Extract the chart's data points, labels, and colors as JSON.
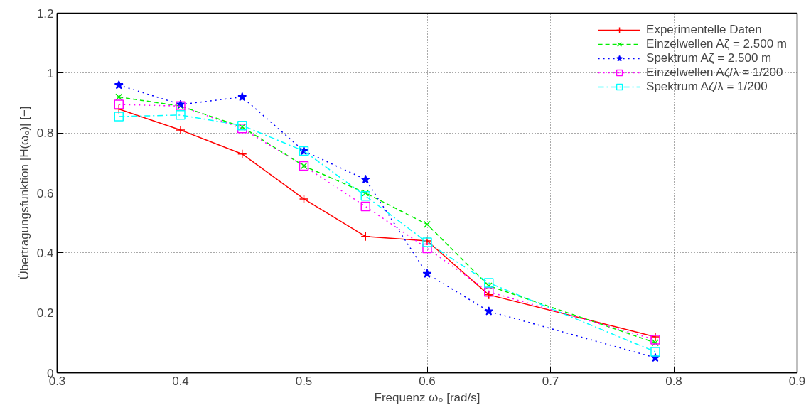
{
  "chart_data": {
    "type": "line",
    "xlabel": "Frequenz ω₀ [rad/s]",
    "ylabel": "Übertragungsfunktion |H(ω₀)| [−]",
    "x": [
      0.35,
      0.4,
      0.45,
      0.5,
      0.55,
      0.6,
      0.65,
      0.785
    ],
    "xlim": [
      0.3,
      0.9
    ],
    "xticks": [
      0.3,
      0.4,
      0.5,
      0.6,
      0.7,
      0.8,
      0.9
    ],
    "ylim": [
      0,
      1.2
    ],
    "yticks": [
      0,
      0.2,
      0.4,
      0.6,
      0.8,
      1,
      1.2
    ],
    "grid": true,
    "legend": "top right",
    "series": [
      {
        "name": "Experimentelle Daten",
        "color": "#ff0000",
        "marker": "cross",
        "line_style": "solid",
        "values": [
          0.88,
          0.81,
          0.73,
          0.58,
          0.455,
          0.44,
          0.26,
          0.12
        ]
      },
      {
        "name": "Einzelwellen Aζ = 2.500 m",
        "color": "#00ee00",
        "marker": "x",
        "line_style": "dashed",
        "values": [
          0.92,
          0.89,
          0.82,
          0.69,
          0.6,
          0.495,
          0.29,
          0.1
        ]
      },
      {
        "name": "Spektrum Aζ = 2.500 m",
        "color": "#0000ff",
        "marker": "star",
        "line_style": "dotted",
        "values": [
          0.96,
          0.895,
          0.92,
          0.74,
          0.645,
          0.33,
          0.205,
          0.05
        ]
      },
      {
        "name": "Einzelwellen Aζ/λ = 1/200",
        "color": "#ff00ff",
        "marker": "square",
        "line_style": "dotted",
        "values": [
          0.895,
          0.89,
          0.815,
          0.69,
          0.555,
          0.415,
          0.27,
          0.11
        ]
      },
      {
        "name": "Spektrum Aζ/λ = 1/200",
        "color": "#00ffff",
        "marker": "square",
        "line_style": "dashdot",
        "values": [
          0.855,
          0.86,
          0.825,
          0.74,
          0.59,
          0.435,
          0.3,
          0.07
        ]
      }
    ]
  }
}
